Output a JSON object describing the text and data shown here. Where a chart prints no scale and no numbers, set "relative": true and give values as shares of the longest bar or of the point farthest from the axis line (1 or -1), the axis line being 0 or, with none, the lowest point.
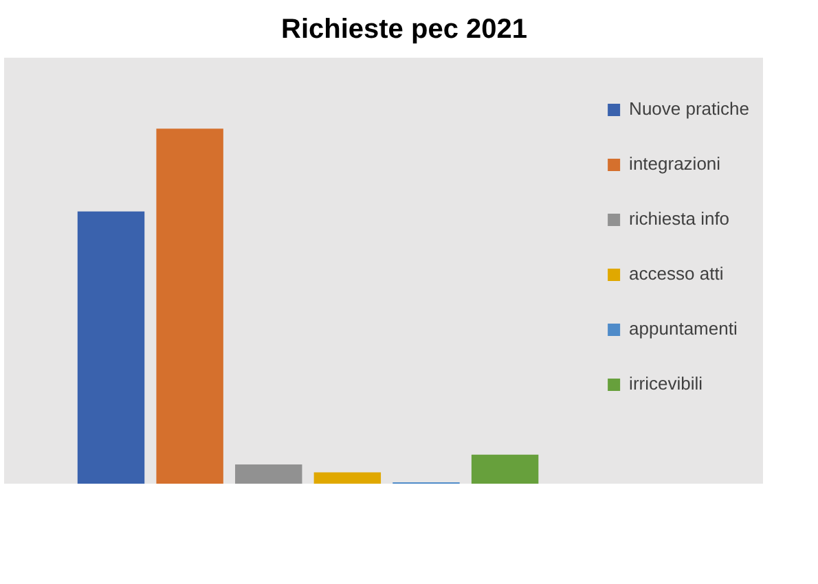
{
  "chart_data": {
    "type": "bar",
    "title": "Richieste pec 2021",
    "relative": true,
    "categories": [
      null
    ],
    "legend": "right",
    "grid": false,
    "series": [
      {
        "name": "Nuove pratiche",
        "color": "#3a62ad",
        "values": [
          0.767
        ]
      },
      {
        "name": "integrazioni",
        "color": "#d5702d",
        "values": [
          1
        ]
      },
      {
        "name": "richiesta info",
        "color": "#919191",
        "values": [
          0.054
        ]
      },
      {
        "name": "accesso atti",
        "color": "#e0a800",
        "values": [
          0.032
        ]
      },
      {
        "name": "appuntamenti",
        "color": "#4f8bc9",
        "values": [
          0.004
        ]
      },
      {
        "name": "irricevibili",
        "color": "#67a03c",
        "values": [
          0.082
        ]
      }
    ]
  }
}
